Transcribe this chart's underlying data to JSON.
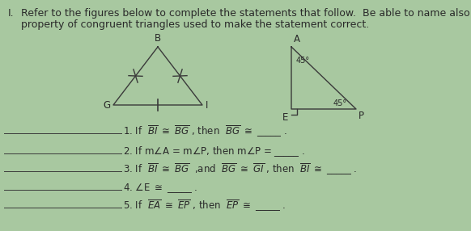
{
  "bg_color": "#a8c8a0",
  "title_num": "I.",
  "title_text": "Refer to the figures below to complete the statements that follow.  Be able to name also the\nproperty of congruent triangles used to make the statement correct.",
  "title_fontsize": 9.0,
  "line_color": "#3a3a3a",
  "text_color": "#2a2a2a",
  "statement_fontsize": 8.5,
  "statements": [
    "1. If  $\\overline{BI}$ $\\cong$ $\\overline{BG}$ , then  $\\overline{BG}$ $\\cong$ _____ .",
    "2. If m$\\angle$A = m$\\angle$P, then m$\\angle$P = _____ .",
    "3. If  $\\overline{BI}$ $\\cong$ $\\overline{BG}$  ,and  $\\overline{BG}$ $\\cong$ $\\overline{GI}$ , then  $\\overline{BI}$ $\\cong$ _____ .",
    "4. $\\angle$E $\\cong$ _____ .",
    "5. If  $\\overline{EA}$ $\\cong$ $\\overline{EP}$ , then  $\\overline{EP}$ $\\cong$ _____ ."
  ]
}
